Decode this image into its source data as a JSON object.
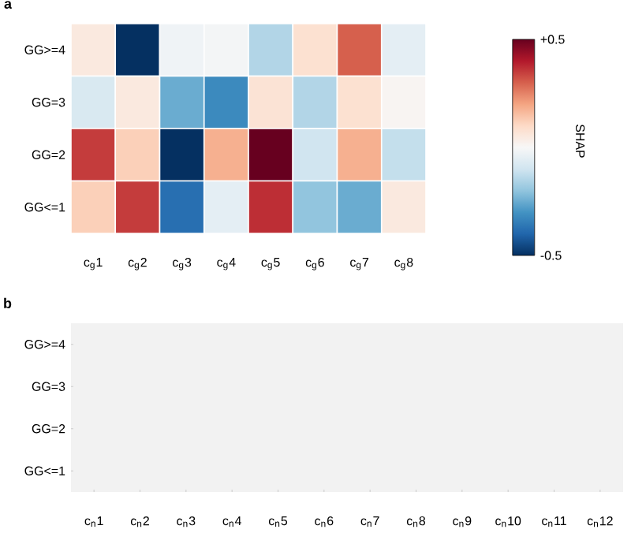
{
  "chart_data": [
    {
      "type": "heatmap",
      "title": "a",
      "clabel": "SHAP",
      "categories": [
        "c$_{g}$1",
        "c$_{g}$2",
        "c$_{g}$3",
        "c$_{g}$4",
        "c$_{g}$5",
        "c$_{g}$6",
        "c$_{g}$7",
        "c$_{g}$8"
      ],
      "y_categories": [
        "GG>=4",
        "GG=3",
        "GG=2",
        "GG<=1"
      ],
      "cells": [
        [
          0.05,
          -0.5,
          -0.02,
          -0.01,
          -0.15,
          0.08,
          0.3,
          -0.05
        ],
        [
          -0.08,
          0.05,
          -0.25,
          -0.32,
          0.07,
          -0.15,
          0.08,
          0.01
        ],
        [
          0.35,
          0.12,
          -0.5,
          0.18,
          0.5,
          -0.1,
          0.18,
          -0.12
        ],
        [
          0.12,
          0.35,
          -0.38,
          -0.05,
          0.37,
          -0.2,
          -0.25,
          0.05
        ]
      ],
      "clim": [
        -0.5,
        0.5
      ],
      "cticks": [
        {
          "value": 0.5,
          "label": "+0.5"
        },
        -0.5
      ]
    },
    {
      "type": "heatmap",
      "title": "b",
      "categories": [
        "c$_{n}$1",
        "c$_{n}$2",
        "c$_{n}$3",
        "c$_{n}$4",
        "c$_{n}$5",
        "c$_{n}$6",
        "c$_{n}$7",
        "c$_{n}$8",
        "c$_{n}$9",
        "c$_{n}$10",
        "c$_{n}$11",
        "c$_{n}$12"
      ],
      "y_categories": [
        "GG>=4",
        "GG=3",
        "GG=2",
        "GG<=1"
      ],
      "cells": [
        [
          null,
          null,
          null,
          null,
          null,
          null,
          null,
          null,
          null,
          null,
          null,
          null
        ],
        [
          null,
          null,
          null,
          null,
          null,
          null,
          null,
          null,
          null,
          null,
          null,
          null
        ],
        [
          null,
          null,
          null,
          null,
          null,
          null,
          null,
          null,
          null,
          null,
          null,
          null
        ],
        [
          null,
          null,
          null,
          null,
          null,
          null,
          null,
          null,
          null,
          null,
          null,
          null
        ]
      ]
    }
  ]
}
